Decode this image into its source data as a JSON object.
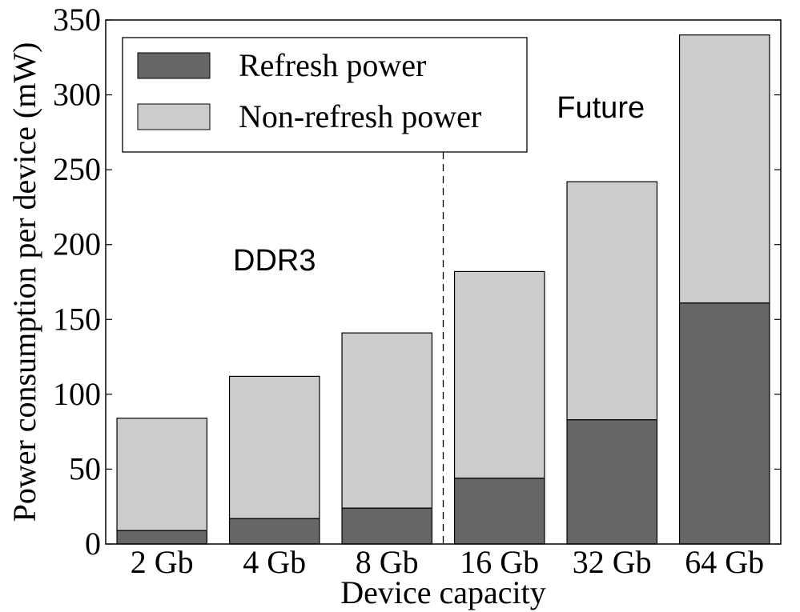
{
  "chart_data": {
    "type": "bar",
    "stacked": true,
    "title": "",
    "xlabel": "Device capacity",
    "ylabel": "Power consumption per device (mW)",
    "categories": [
      "2 Gb",
      "4 Gb",
      "8 Gb",
      "16 Gb",
      "32 Gb",
      "64 Gb"
    ],
    "series": [
      {
        "name": "Refresh power",
        "color": "#666666",
        "values": [
          9,
          17,
          24,
          44,
          83,
          161
        ]
      },
      {
        "name": "Non-refresh power",
        "color": "#cccccc",
        "values": [
          75,
          95,
          117,
          138,
          159,
          179
        ]
      }
    ],
    "ylim": [
      0,
      350
    ],
    "yticks": [
      "0",
      "50",
      "100",
      "150",
      "200",
      "250",
      "300",
      "350"
    ],
    "grid": false,
    "legend": "top-left",
    "annotations": [
      {
        "text": "DDR3"
      },
      {
        "text": "Future"
      }
    ],
    "divider_between": [
      "8 Gb",
      "16 Gb"
    ]
  }
}
